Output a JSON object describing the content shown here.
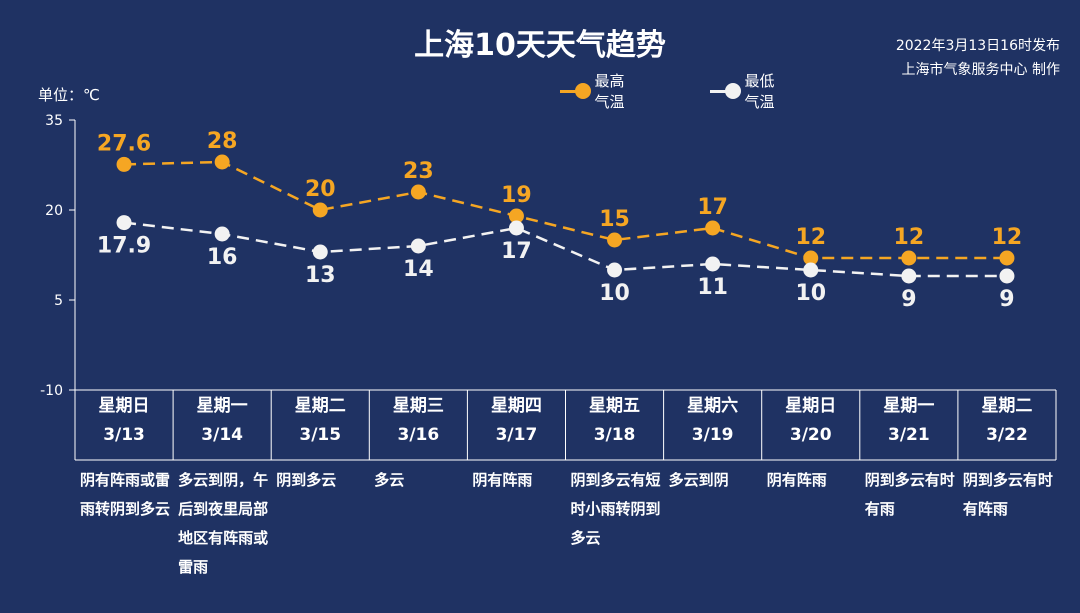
{
  "header": {
    "title": "上海10天天气趋势",
    "publish_time": "2022年3月13日16时发布",
    "publisher": "上海市气象服务中心 制作",
    "unit": "单位：℃"
  },
  "legend": {
    "high": "最高气温",
    "low": "最低气温"
  },
  "colors": {
    "background": "#1f3263",
    "high": "#f5a623",
    "low": "#f2f2f2"
  },
  "chart_data": {
    "type": "line",
    "categories": [
      "3/13",
      "3/14",
      "3/15",
      "3/16",
      "3/17",
      "3/18",
      "3/19",
      "3/20",
      "3/21",
      "3/22"
    ],
    "series": [
      {
        "name": "最高气温",
        "values": [
          27.6,
          28,
          20,
          23,
          19,
          15,
          17,
          12,
          12,
          12
        ]
      },
      {
        "name": "最低气温",
        "values": [
          17.9,
          16,
          13,
          14,
          17,
          10,
          11,
          10,
          9,
          9
        ]
      }
    ],
    "yticks": [
      35,
      20,
      5,
      -10
    ],
    "ylim": [
      -10,
      35
    ],
    "line_style": "dashed",
    "grid": false
  },
  "days": [
    {
      "weekday": "星期日",
      "date": "3/13",
      "desc": "阴有阵雨或雷雨转阴到多云"
    },
    {
      "weekday": "星期一",
      "date": "3/14",
      "desc": "多云到阴，午后到夜里局部地区有阵雨或雷雨"
    },
    {
      "weekday": "星期二",
      "date": "3/15",
      "desc": "阴到多云"
    },
    {
      "weekday": "星期三",
      "date": "3/16",
      "desc": "多云"
    },
    {
      "weekday": "星期四",
      "date": "3/17",
      "desc": "阴有阵雨"
    },
    {
      "weekday": "星期五",
      "date": "3/18",
      "desc": "阴到多云有短时小雨转阴到多云"
    },
    {
      "weekday": "星期六",
      "date": "3/19",
      "desc": "多云到阴"
    },
    {
      "weekday": "星期日",
      "date": "3/20",
      "desc": "阴有阵雨"
    },
    {
      "weekday": "星期一",
      "date": "3/21",
      "desc": "阴到多云有时有雨"
    },
    {
      "weekday": "星期二",
      "date": "3/22",
      "desc": "阴到多云有时有阵雨"
    }
  ]
}
